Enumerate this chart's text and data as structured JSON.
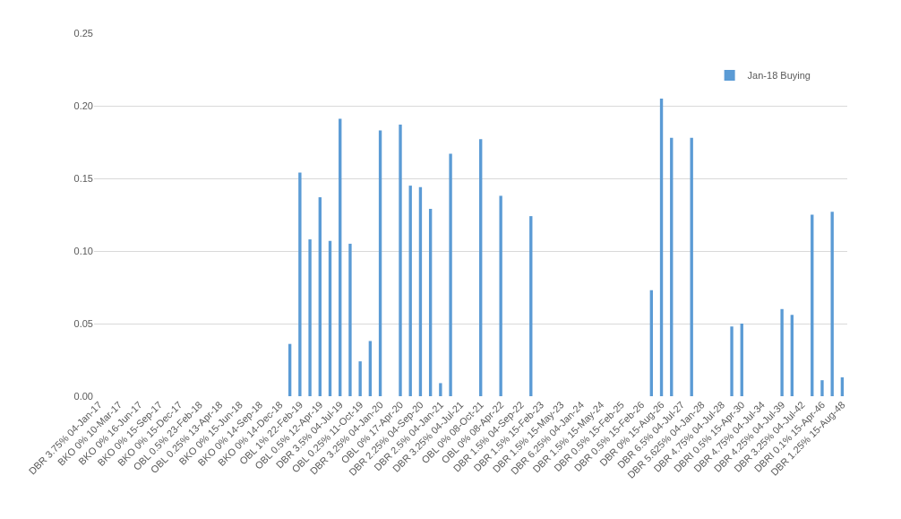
{
  "chart_data": {
    "type": "bar",
    "categories": [
      "DBR 3.75% 04-Jan-17",
      null,
      "BKO 0% 10-Mar-17",
      null,
      "BKO 0% 16-Jun-17",
      null,
      "BKO 0% 15-Sep-17",
      null,
      "BKO 0% 15-Dec-17",
      null,
      "OBL 0.5% 23-Feb-18",
      null,
      "OBL 0.25% 13-Apr-18",
      null,
      "BKO 0% 15-Jun-18",
      null,
      "BKO 0% 14-Sep-18",
      null,
      "BKO 0% 14-Dec-18",
      null,
      "OBL 1% 22-Feb-19",
      null,
      "OBL 0.5% 12-Apr-19",
      null,
      "DBR 3.5% 04-Jul-19",
      null,
      "OBL 0.25% 11-Oct-19",
      null,
      "DBR 3.25% 04-Jan-20",
      null,
      "OBL 0% 17-Apr-20",
      null,
      "DBR 2.25% 04-Sep-20",
      null,
      "DBR 2.5% 04-Jan-21",
      null,
      "DBR 3.25% 04-Jul-21",
      null,
      "OBL 0% 08-Oct-21",
      null,
      "OBL 0% 08-Apr-22",
      null,
      "DBR 1.5% 04-Sep-22",
      null,
      "DBR 1.5% 15-Feb-23",
      null,
      "DBR 1.5% 15-May-23",
      null,
      "DBR 6.25% 04-Jan-24",
      null,
      "DBR 1.5% 15-May-24",
      null,
      "DBR 0.5% 15-Feb-25",
      null,
      "DBR 0.5% 15-Feb-26",
      null,
      "DBR 0% 15-Aug-26",
      null,
      "DBR 6.5% 04-Jul-27",
      null,
      "DBR 5.625% 04-Jan-28",
      null,
      "DBR 4.75% 04-Jul-28",
      null,
      "DBRI 0.5% 15-Apr-30",
      null,
      "DBR 4.75% 04-Jul-34",
      null,
      "DBR 4.25% 04-Jul-39",
      null,
      "DBR 3.25% 04-Jul-42",
      null,
      "DBRI 0.1% 15-Apr-46",
      null,
      "DBR 1.25% 15-Aug-48"
    ],
    "series": [
      {
        "name": "Jan-18 Buying",
        "color": "#5b9bd5",
        "values": [
          null,
          null,
          null,
          null,
          null,
          null,
          null,
          null,
          null,
          null,
          null,
          null,
          null,
          null,
          null,
          null,
          null,
          null,
          null,
          0.036,
          0.154,
          0.108,
          0.137,
          0.107,
          0.191,
          0.105,
          0.024,
          0.038,
          0.183,
          null,
          0.187,
          0.145,
          0.144,
          0.129,
          0.009,
          0.167,
          null,
          null,
          0.177,
          null,
          0.138,
          null,
          null,
          0.124,
          null,
          null,
          null,
          null,
          null,
          null,
          null,
          null,
          null,
          null,
          null,
          0.073,
          0.205,
          0.178,
          null,
          0.178,
          null,
          null,
          null,
          0.048,
          0.05,
          null,
          null,
          null,
          0.06,
          0.056,
          null,
          0.125,
          0.011,
          0.127,
          0.013
        ]
      }
    ],
    "ylim": [
      0,
      0.25
    ],
    "yticks": [
      {
        "value": 0,
        "label": "0.00"
      },
      {
        "value": 0.05,
        "label": "0.05"
      },
      {
        "value": 0.1,
        "label": "0.10"
      },
      {
        "value": 0.15,
        "label": "0.15"
      },
      {
        "value": 0.2,
        "label": "0.20"
      },
      {
        "value": 0.25,
        "label": "0.25"
      }
    ],
    "grid": "y",
    "legend": "top right"
  }
}
